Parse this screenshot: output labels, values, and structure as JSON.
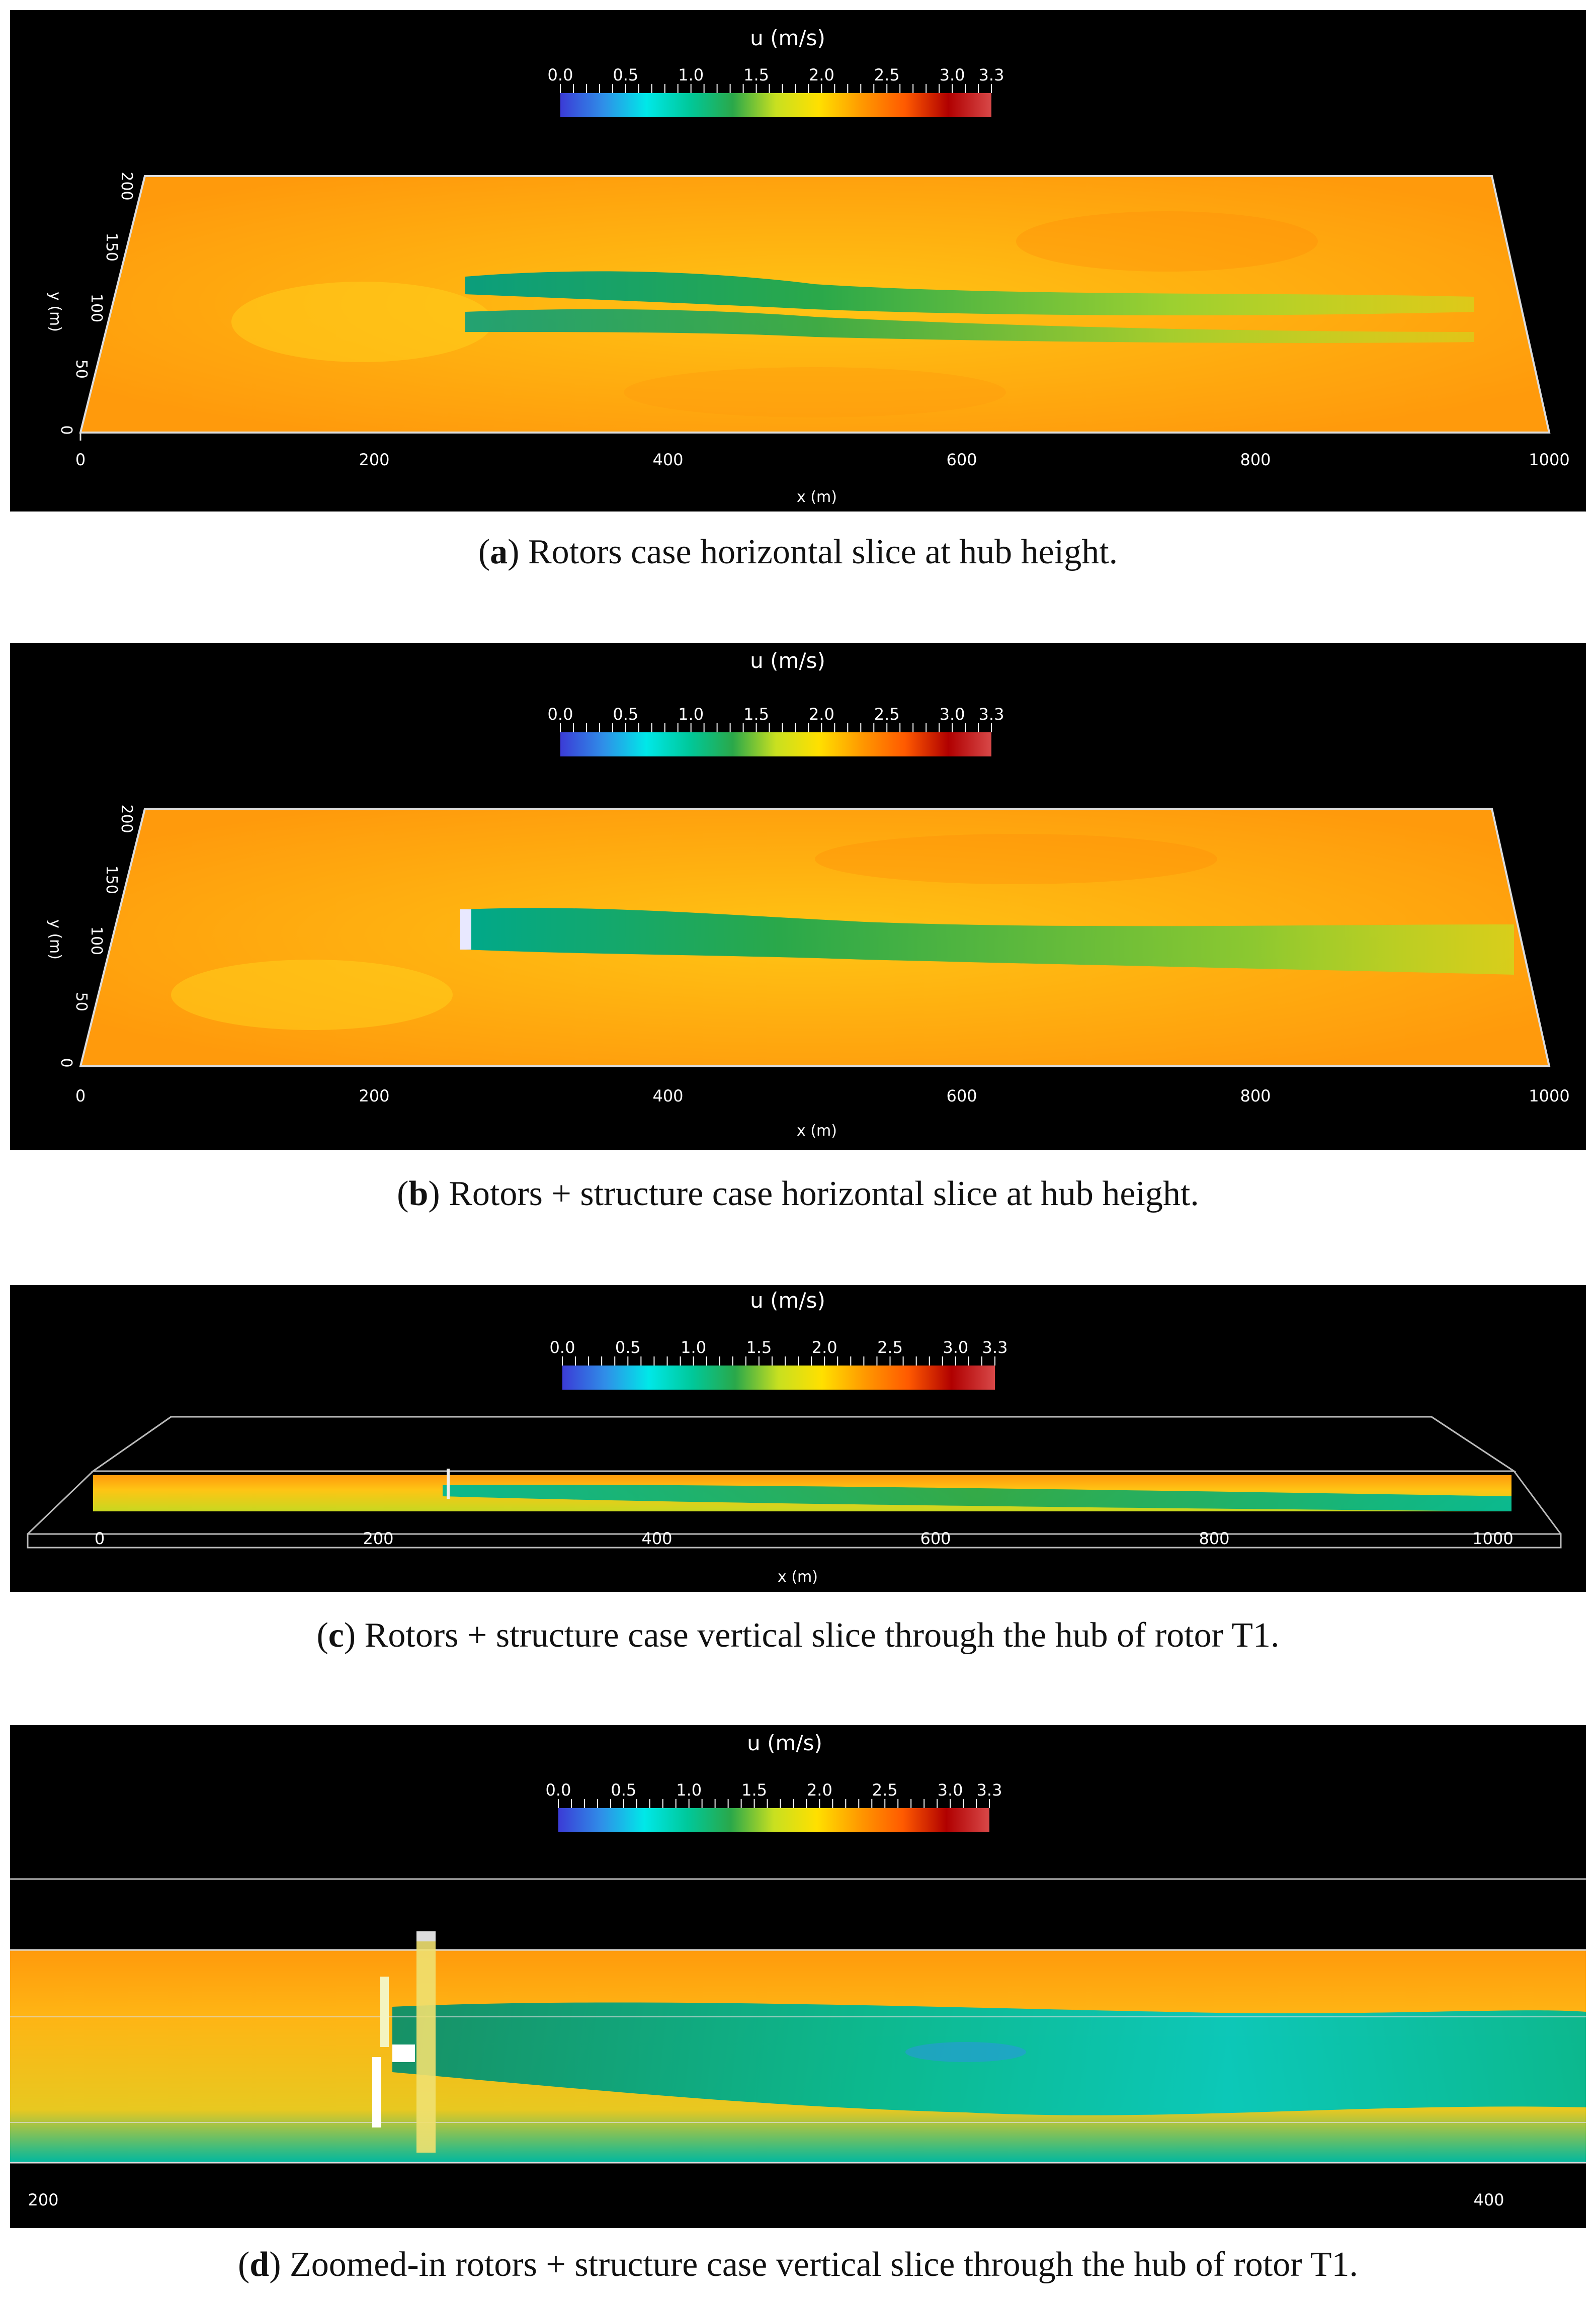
{
  "colorbar": {
    "title": "u (m/s)",
    "ticks": [
      "0.0",
      "0.5",
      "1.0",
      "1.5",
      "2.0",
      "2.5",
      "3.0",
      "3.3"
    ],
    "range": [
      0.0,
      3.3
    ],
    "colormap": [
      "#3b3bd6",
      "#2f8fe8",
      "#00e8e8",
      "#00c89a",
      "#2aa84a",
      "#c8e020",
      "#ffe000",
      "#ff9800",
      "#ff5a00",
      "#b00000",
      "#d84848"
    ]
  },
  "panels": [
    {
      "id": "a",
      "x_ticks": [
        "0",
        "200",
        "400",
        "600",
        "800",
        "1000"
      ],
      "x_label": "x (m)",
      "y_ticks": [
        "0",
        "50",
        "100",
        "150",
        "200"
      ],
      "y_label": "y (m)",
      "caption_letter": "a",
      "caption_text": ") Rotors case horizontal slice at hub height."
    },
    {
      "id": "b",
      "x_ticks": [
        "0",
        "200",
        "400",
        "600",
        "800",
        "1000"
      ],
      "x_label": "x (m)",
      "y_ticks": [
        "0",
        "50",
        "100",
        "150",
        "200"
      ],
      "y_label": "y (m)",
      "caption_letter": "b",
      "caption_text": ") Rotors + structure case horizontal slice at hub height."
    },
    {
      "id": "c",
      "x_ticks": [
        "0",
        "200",
        "400",
        "600",
        "800",
        "1000"
      ],
      "x_label": "x (m)",
      "caption_letter": "c",
      "caption_text": ") Rotors + structure case vertical slice through the hub of rotor T1."
    },
    {
      "id": "d",
      "x_ticks": [
        "200",
        "400"
      ],
      "caption_letter": "d",
      "caption_text": ") Zoomed-in rotors + structure case vertical slice through the hub of rotor T1."
    }
  ]
}
